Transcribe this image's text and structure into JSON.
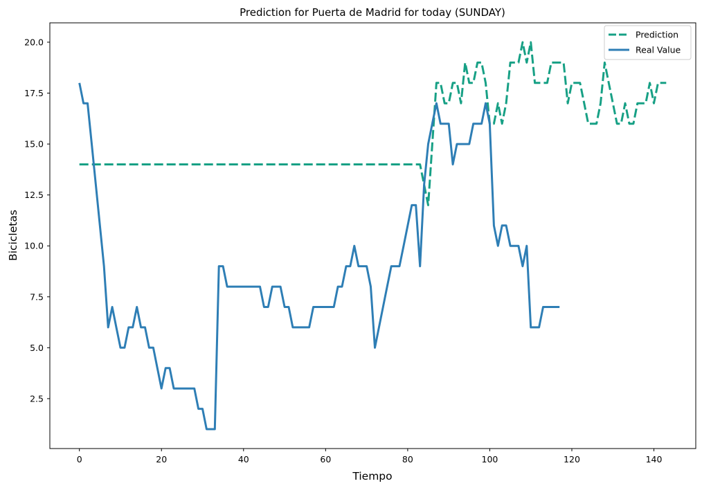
{
  "chart_data": {
    "type": "line",
    "title": "Prediction for Puerta de Madrid for today (SUNDAY)",
    "xlabel": "Tiempo",
    "ylabel": "Bicicletas",
    "xlim": [
      -7.2,
      150.2
    ],
    "ylim": [
      0.05,
      20.95
    ],
    "xticks": [
      0,
      20,
      40,
      60,
      80,
      100,
      120,
      140
    ],
    "xtick_labels": [
      "0",
      "20",
      "40",
      "60",
      "80",
      "100",
      "120",
      "140"
    ],
    "yticks": [
      2.5,
      5.0,
      7.5,
      10.0,
      12.5,
      15.0,
      17.5,
      20.0
    ],
    "ytick_labels": [
      "2.5",
      "5.0",
      "7.5",
      "10.0",
      "12.5",
      "15.0",
      "17.5",
      "20.0"
    ],
    "grid": false,
    "legend_position": "top-right",
    "series": [
      {
        "name": "Prediction",
        "style": "dashed",
        "color": "#17a085",
        "x": [
          0,
          83,
          84,
          85,
          86,
          87,
          88,
          89,
          90,
          91,
          92,
          93,
          94,
          95,
          96,
          97,
          98,
          99,
          100,
          101,
          102,
          103,
          104,
          105,
          106,
          107,
          108,
          109,
          110,
          111,
          112,
          113,
          114,
          115,
          116,
          117,
          118,
          119,
          120,
          121,
          122,
          123,
          124,
          125,
          126,
          127,
          128,
          129,
          130,
          131,
          132,
          133,
          134,
          135,
          136,
          137,
          138,
          139,
          140,
          141,
          142,
          143
        ],
        "y": [
          14,
          14,
          13,
          12,
          15,
          18,
          18,
          17,
          17,
          18,
          18,
          17,
          19,
          18,
          18,
          19,
          19,
          18,
          16,
          16,
          17,
          16,
          17,
          19,
          19,
          19,
          20,
          19,
          20,
          18,
          18,
          18,
          18,
          19,
          19,
          19,
          19,
          17,
          18,
          18,
          18,
          17,
          16,
          16,
          16,
          17,
          19,
          18,
          17,
          16,
          16,
          17,
          16,
          16,
          17,
          17,
          17,
          18,
          17,
          18,
          18,
          18
        ]
      },
      {
        "name": "Real Value",
        "style": "solid",
        "color": "#2e7eb5",
        "x": [
          0,
          1,
          2,
          3,
          4,
          5,
          6,
          7,
          8,
          9,
          10,
          11,
          12,
          13,
          14,
          15,
          16,
          17,
          18,
          19,
          20,
          21,
          22,
          23,
          24,
          25,
          26,
          27,
          28,
          29,
          30,
          31,
          32,
          33,
          34,
          35,
          36,
          37,
          38,
          39,
          40,
          41,
          42,
          43,
          44,
          45,
          46,
          47,
          48,
          49,
          50,
          51,
          52,
          53,
          54,
          55,
          56,
          57,
          58,
          59,
          60,
          61,
          62,
          63,
          64,
          65,
          66,
          67,
          68,
          69,
          70,
          71,
          72,
          73,
          74,
          75,
          76,
          77,
          78,
          79,
          80,
          81,
          82,
          83,
          84,
          85,
          86,
          87,
          88,
          89,
          90,
          91,
          92,
          93,
          94,
          95,
          96,
          97,
          98,
          99,
          100,
          101,
          102,
          103,
          104,
          105,
          106,
          107,
          108,
          109,
          110,
          111,
          112,
          113,
          114,
          115,
          116,
          117
        ],
        "y": [
          18,
          17,
          17,
          15,
          13,
          11,
          9,
          6,
          7,
          6,
          5,
          5,
          6,
          6,
          7,
          6,
          6,
          5,
          5,
          4,
          3,
          4,
          4,
          3,
          3,
          3,
          3,
          3,
          3,
          2,
          2,
          1,
          1,
          1,
          9,
          9,
          8,
          8,
          8,
          8,
          8,
          8,
          8,
          8,
          8,
          7,
          7,
          8,
          8,
          8,
          7,
          7,
          6,
          6,
          6,
          6,
          6,
          7,
          7,
          7,
          7,
          7,
          7,
          8,
          8,
          9,
          9,
          10,
          9,
          9,
          9,
          8,
          5,
          6,
          7,
          8,
          9,
          9,
          9,
          10,
          11,
          12,
          12,
          9,
          13,
          15,
          16,
          17,
          16,
          16,
          16,
          14,
          15,
          15,
          15,
          15,
          16,
          16,
          16,
          17,
          16,
          11,
          10,
          11,
          11,
          10,
          10,
          10,
          9,
          10,
          6,
          6,
          6,
          7,
          7,
          7,
          7,
          7
        ]
      }
    ]
  }
}
